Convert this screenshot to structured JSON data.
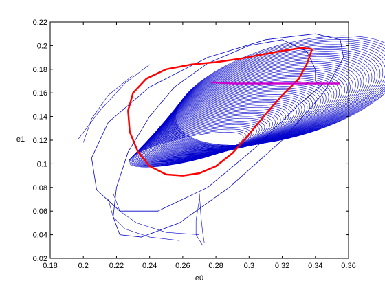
{
  "chart_data": {
    "type": "line",
    "title": "",
    "xlabel": "e0",
    "ylabel": "e1",
    "xlim": [
      0.18,
      0.36
    ],
    "ylim": [
      0.02,
      0.22
    ],
    "x_ticks": [
      "0.18",
      "0.2",
      "0.22",
      "0.24",
      "0.26",
      "0.28",
      "0.3",
      "0.32",
      "0.34",
      "0.36"
    ],
    "y_ticks": [
      "0.02",
      "0.04",
      "0.06",
      "0.08",
      "0.1",
      "0.12",
      "0.14",
      "0.16",
      "0.18",
      "0.2",
      "0.22"
    ],
    "x_tick_values": [
      0.18,
      0.2,
      0.22,
      0.24,
      0.26,
      0.28,
      0.3,
      0.32,
      0.34,
      0.36
    ],
    "y_tick_values": [
      0.02,
      0.04,
      0.06,
      0.08,
      0.1,
      0.12,
      0.14,
      0.16,
      0.18,
      0.2,
      0.22
    ],
    "grid": false,
    "legend": "none",
    "colors": {
      "trajectories": "#0000cc",
      "limit_cycle": "#ff0000",
      "equilibrium_branch": "#cc00cc"
    },
    "series": [
      {
        "color": "#0000cc",
        "style": "spiral-trajectories",
        "x": [
          0.343,
          0.34,
          0.34,
          0.335,
          0.32,
          0.3,
          0.275,
          0.255,
          0.24,
          0.227,
          0.22,
          0.218,
          0.222,
          0.235,
          0.258,
          0.288,
          0.32,
          0.345,
          0.357,
          0.355,
          0.34,
          0.31,
          0.275,
          0.24,
          0.215,
          0.205,
          0.208,
          0.222,
          0.245,
          0.275,
          0.305,
          0.33,
          0.345
        ],
        "y": [
          0.168,
          0.17,
          0.18,
          0.195,
          0.205,
          0.2,
          0.185,
          0.165,
          0.14,
          0.11,
          0.08,
          0.055,
          0.04,
          0.038,
          0.05,
          0.08,
          0.12,
          0.16,
          0.19,
          0.205,
          0.21,
          0.205,
          0.19,
          0.165,
          0.135,
          0.105,
          0.078,
          0.06,
          0.06,
          0.08,
          0.115,
          0.15,
          0.168
        ]
      },
      {
        "color": "#ff0000",
        "style": "thick",
        "x": [
          0.338,
          0.335,
          0.33,
          0.32,
          0.31,
          0.3,
          0.29,
          0.28,
          0.27,
          0.26,
          0.25,
          0.24,
          0.233,
          0.228,
          0.227,
          0.23,
          0.238,
          0.25,
          0.265,
          0.28,
          0.295,
          0.31,
          0.322,
          0.332,
          0.338
        ],
        "y": [
          0.197,
          0.185,
          0.172,
          0.158,
          0.142,
          0.125,
          0.109,
          0.098,
          0.092,
          0.09,
          0.091,
          0.098,
          0.11,
          0.127,
          0.145,
          0.16,
          0.172,
          0.18,
          0.184,
          0.186,
          0.189,
          0.193,
          0.196,
          0.198,
          0.197
        ]
      },
      {
        "color": "#cc00cc",
        "style": "thick",
        "x": [
          0.277,
          0.29,
          0.3,
          0.31,
          0.32,
          0.33,
          0.34,
          0.35,
          0.355
        ],
        "y": [
          0.169,
          0.168,
          0.168,
          0.168,
          0.168,
          0.168,
          0.168,
          0.168,
          0.168
        ]
      }
    ]
  }
}
